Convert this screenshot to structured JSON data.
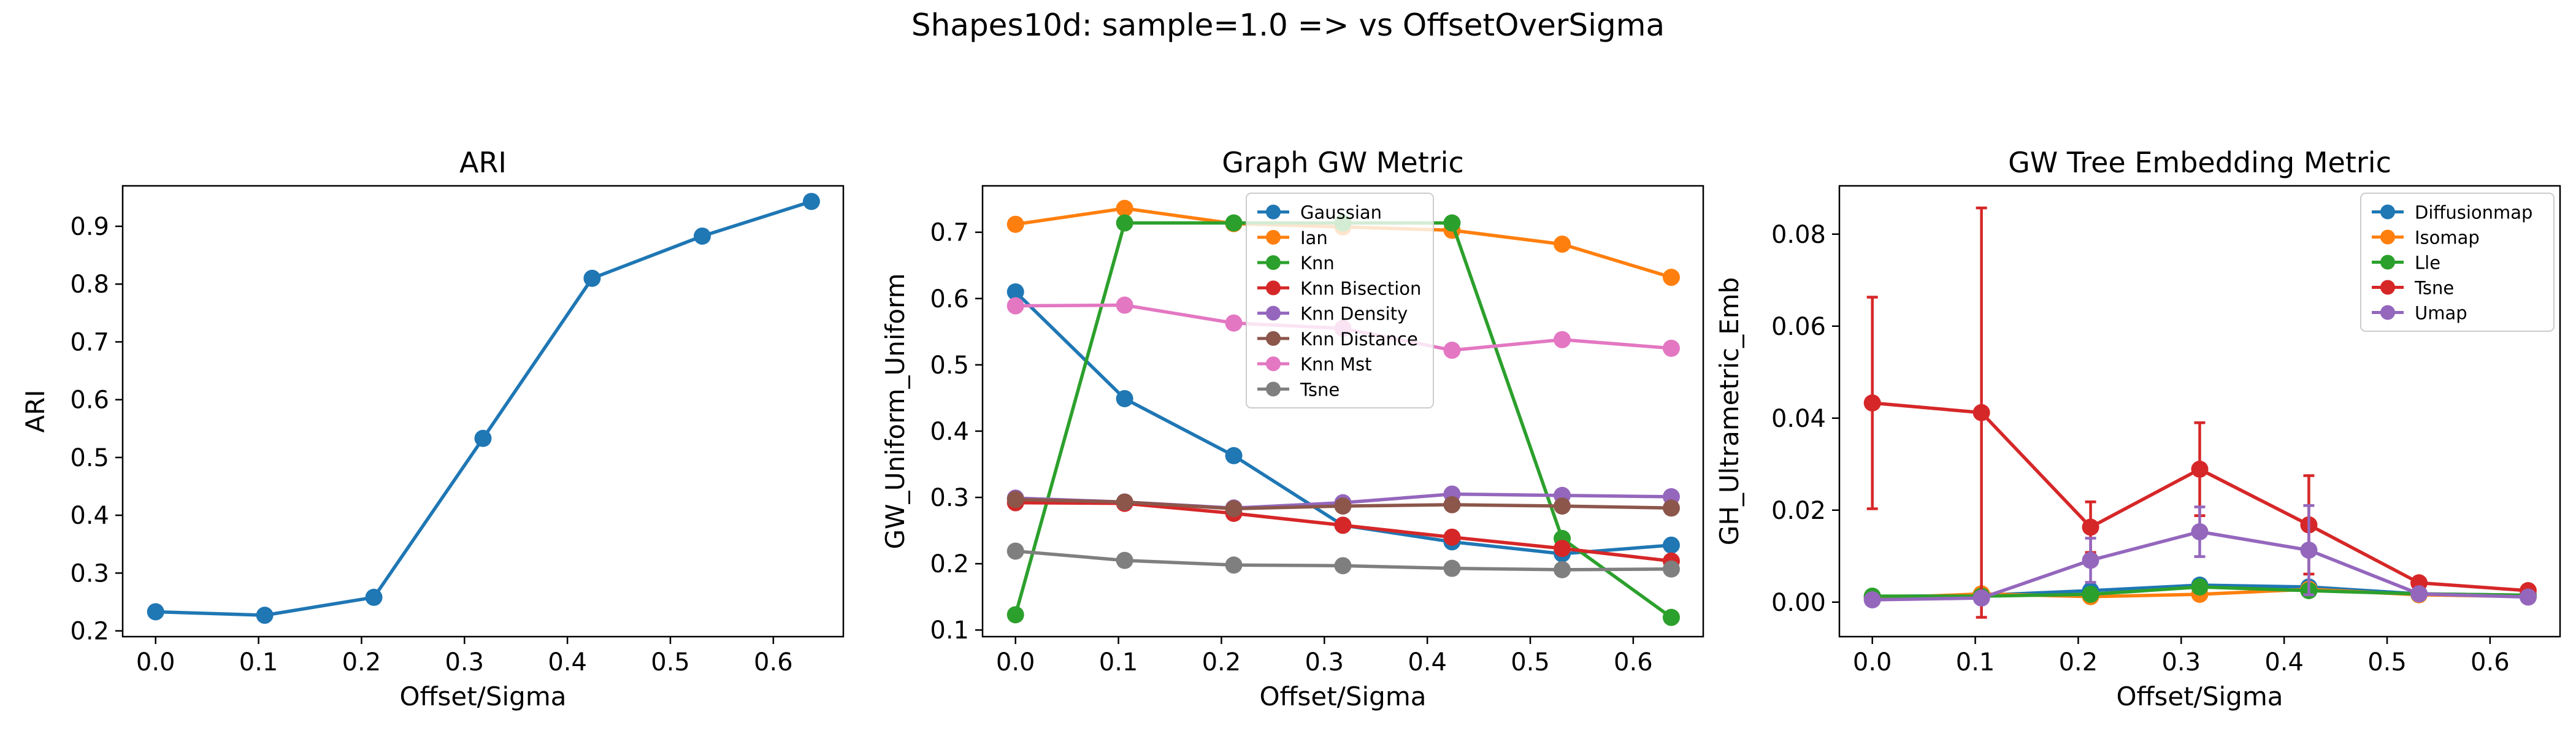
{
  "figure": {
    "suptitle": "Shapes10d: sample=1.0 => vs OffsetOverSigma"
  },
  "chart_data": [
    {
      "type": "line",
      "title": "ARI",
      "xlabel": "Offset/Sigma",
      "ylabel": "ARI",
      "xlim": [
        -0.032,
        0.668
      ],
      "ylim": [
        0.19,
        0.97
      ],
      "xticks": [
        0.0,
        0.1,
        0.2,
        0.3,
        0.4,
        0.5,
        0.6
      ],
      "yticks": [
        0.2,
        0.3,
        0.4,
        0.5,
        0.6,
        0.7,
        0.8,
        0.9
      ],
      "tick_decimals": 1,
      "grid": false,
      "legend": null,
      "x": [
        0.0,
        0.106,
        0.212,
        0.318,
        0.424,
        0.531,
        0.637
      ],
      "series": [
        {
          "color": "#1f77b4",
          "marker": "circle",
          "values": [
            0.233,
            0.227,
            0.258,
            0.533,
            0.81,
            0.883,
            0.943
          ]
        }
      ]
    },
    {
      "type": "line",
      "title": "Graph GW Metric",
      "xlabel": "Offset/Sigma",
      "ylabel": "GW_Uniform_Uniform",
      "xlim": [
        -0.032,
        0.668
      ],
      "ylim": [
        0.09,
        0.77
      ],
      "xticks": [
        0.0,
        0.1,
        0.2,
        0.3,
        0.4,
        0.5,
        0.6
      ],
      "yticks": [
        0.1,
        0.2,
        0.3,
        0.4,
        0.5,
        0.6,
        0.7
      ],
      "tick_decimals": 1,
      "grid": false,
      "legend": "upper center",
      "x": [
        0.0,
        0.106,
        0.212,
        0.318,
        0.424,
        0.531,
        0.637
      ],
      "series": [
        {
          "name": "Gaussian",
          "color": "#1f77b4",
          "marker": "circle",
          "values": [
            0.61,
            0.449,
            0.363,
            0.258,
            0.233,
            0.215,
            0.228
          ]
        },
        {
          "name": "Ian",
          "color": "#ff7f0e",
          "marker": "circle",
          "values": [
            0.712,
            0.736,
            0.713,
            0.708,
            0.703,
            0.682,
            0.632
          ]
        },
        {
          "name": "Knn",
          "color": "#2ca02c",
          "marker": "circle",
          "values": [
            0.123,
            0.714,
            0.714,
            0.714,
            0.714,
            0.238,
            0.119
          ]
        },
        {
          "name": "Knn Bisection",
          "color": "#d62728",
          "marker": "circle",
          "values": [
            0.292,
            0.291,
            0.276,
            0.258,
            0.24,
            0.223,
            0.204
          ]
        },
        {
          "name": "Knn Density",
          "color": "#9467bd",
          "marker": "circle",
          "values": [
            0.299,
            0.293,
            0.284,
            0.292,
            0.305,
            0.303,
            0.301
          ]
        },
        {
          "name": "Knn Distance",
          "color": "#8c564b",
          "marker": "circle",
          "values": [
            0.297,
            0.293,
            0.283,
            0.287,
            0.289,
            0.287,
            0.284
          ]
        },
        {
          "name": "Knn Mst",
          "color": "#e377c2",
          "marker": "circle",
          "values": [
            0.589,
            0.59,
            0.563,
            0.555,
            0.522,
            0.538,
            0.525
          ]
        },
        {
          "name": "Tsne",
          "color": "#7f7f7f",
          "marker": "circle",
          "values": [
            0.219,
            0.205,
            0.198,
            0.197,
            0.193,
            0.191,
            0.192
          ]
        }
      ]
    },
    {
      "type": "line",
      "title": "GW Tree Embedding Metric",
      "xlabel": "Offset/Sigma",
      "ylabel": "GH_Ultrametric_Emb",
      "xlim": [
        -0.032,
        0.668
      ],
      "ylim": [
        -0.0075,
        0.0905
      ],
      "xticks": [
        0.0,
        0.1,
        0.2,
        0.3,
        0.4,
        0.5,
        0.6
      ],
      "yticks": [
        0.0,
        0.02,
        0.04,
        0.06,
        0.08
      ],
      "tick_decimals": 2,
      "grid": false,
      "legend": "upper right",
      "x": [
        0.0,
        0.106,
        0.212,
        0.318,
        0.424,
        0.531,
        0.637
      ],
      "series": [
        {
          "name": "Diffusionmap",
          "color": "#1f77b4",
          "marker": "circle",
          "values": [
            0.0012,
            0.0015,
            0.0025,
            0.0037,
            0.0033,
            0.0018,
            0.0015
          ],
          "errors": [
            0.0004,
            0.0004,
            0.0005,
            0.0006,
            0.0006,
            0.0004,
            0.0003
          ]
        },
        {
          "name": "Isomap",
          "color": "#ff7f0e",
          "marker": "circle",
          "values": [
            0.0008,
            0.0018,
            0.0012,
            0.0017,
            0.0028,
            0.0016,
            0.0012
          ],
          "errors": [
            0.0003,
            0.0004,
            0.0003,
            0.0004,
            0.0005,
            0.0004,
            0.0003
          ]
        },
        {
          "name": "Lle",
          "color": "#2ca02c",
          "marker": "circle",
          "values": [
            0.0013,
            0.0013,
            0.0017,
            0.0033,
            0.0025,
            0.0018,
            0.0015
          ],
          "errors": [
            0.0003,
            0.0003,
            0.0004,
            0.0005,
            0.0005,
            0.0004,
            0.0003
          ]
        },
        {
          "name": "Tsne",
          "color": "#d62728",
          "marker": "circle",
          "values": [
            0.0433,
            0.0412,
            0.0163,
            0.0289,
            0.0168,
            0.0042,
            0.0025
          ],
          "errors": [
            0.023,
            0.0445,
            0.0055,
            0.0101,
            0.0107,
            0.0008,
            0.0006
          ]
        },
        {
          "name": "Umap",
          "color": "#9467bd",
          "marker": "circle",
          "values": [
            0.0005,
            0.0009,
            0.0091,
            0.0153,
            0.0113,
            0.0018,
            0.0011
          ],
          "errors": [
            0.0003,
            0.0004,
            0.0048,
            0.0054,
            0.0097,
            0.0004,
            0.0003
          ]
        }
      ]
    }
  ]
}
